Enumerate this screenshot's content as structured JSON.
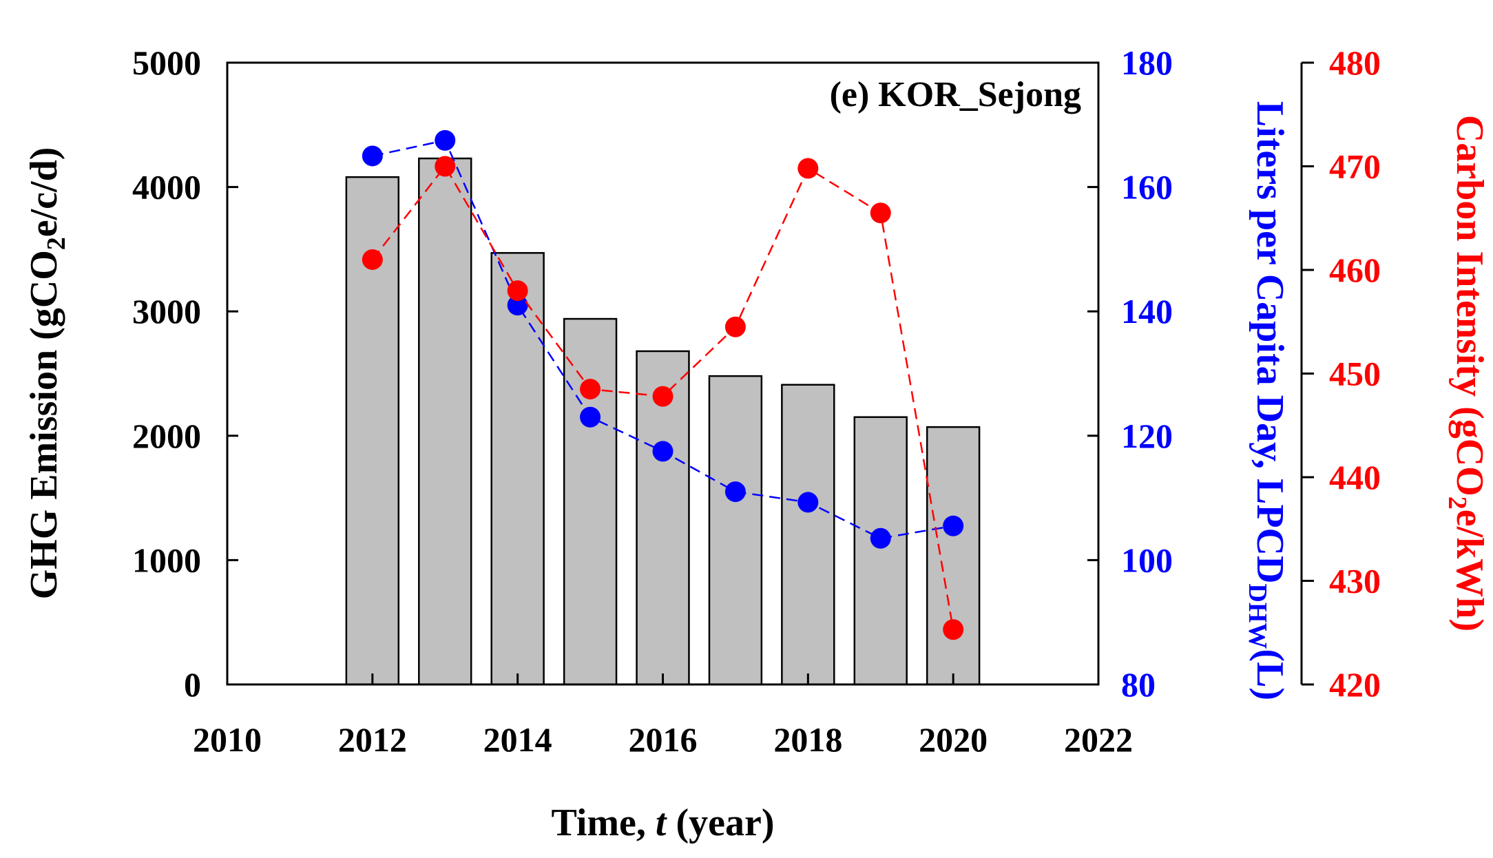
{
  "chart_data": {
    "type": "bar",
    "panel_label": "(e) KOR_Sejong",
    "x": [
      2012,
      2013,
      2014,
      2015,
      2016,
      2017,
      2018,
      2019,
      2020
    ],
    "xlim": [
      2010,
      2022
    ],
    "xticks": [
      "2010",
      "2012",
      "2014",
      "2016",
      "2018",
      "2020",
      "2022"
    ],
    "xlabel": {
      "prefix": "Time, ",
      "var": "t",
      "suffix": " (year)"
    },
    "axes": {
      "left": {
        "label_main": "GHG Emission (gCO",
        "label_sub": "2",
        "label_end": "e/c/d)",
        "ylim": [
          0,
          5000
        ],
        "ticks": [
          "0",
          "1000",
          "2000",
          "3000",
          "4000",
          "5000"
        ],
        "color": "#000000"
      },
      "right1": {
        "label_main": "Liters per Capita Day, LPCD",
        "label_sub": "DHW",
        "label_end": "(L)",
        "ylim": [
          80,
          180
        ],
        "ticks": [
          "80",
          "100",
          "120",
          "140",
          "160",
          "180"
        ],
        "color": "#0000ff"
      },
      "right2": {
        "label_main": "Carbon Intensity (gCO",
        "label_sub": "2",
        "label_end": "e/kWh)",
        "ylim": [
          420,
          480
        ],
        "ticks": [
          "420",
          "430",
          "440",
          "450",
          "460",
          "470",
          "480"
        ],
        "color": "#ff0000"
      }
    },
    "series": [
      {
        "name": "GHG Emission",
        "type": "bar",
        "axis": "left",
        "color": "#c0c0c0",
        "values": [
          4080,
          4230,
          3470,
          2940,
          2680,
          2480,
          2410,
          2150,
          2070
        ]
      },
      {
        "name": "LPCD DHW",
        "type": "line",
        "axis": "right1",
        "color": "#0000ff",
        "values": [
          165,
          167.5,
          141,
          123,
          117.5,
          111,
          109.3,
          103.5,
          105.5
        ]
      },
      {
        "name": "Carbon Intensity",
        "type": "line",
        "axis": "right2",
        "color": "#ff0000",
        "values": [
          461,
          470,
          458,
          448.5,
          447.8,
          454.5,
          469.8,
          465.5,
          425.3
        ]
      }
    ]
  }
}
